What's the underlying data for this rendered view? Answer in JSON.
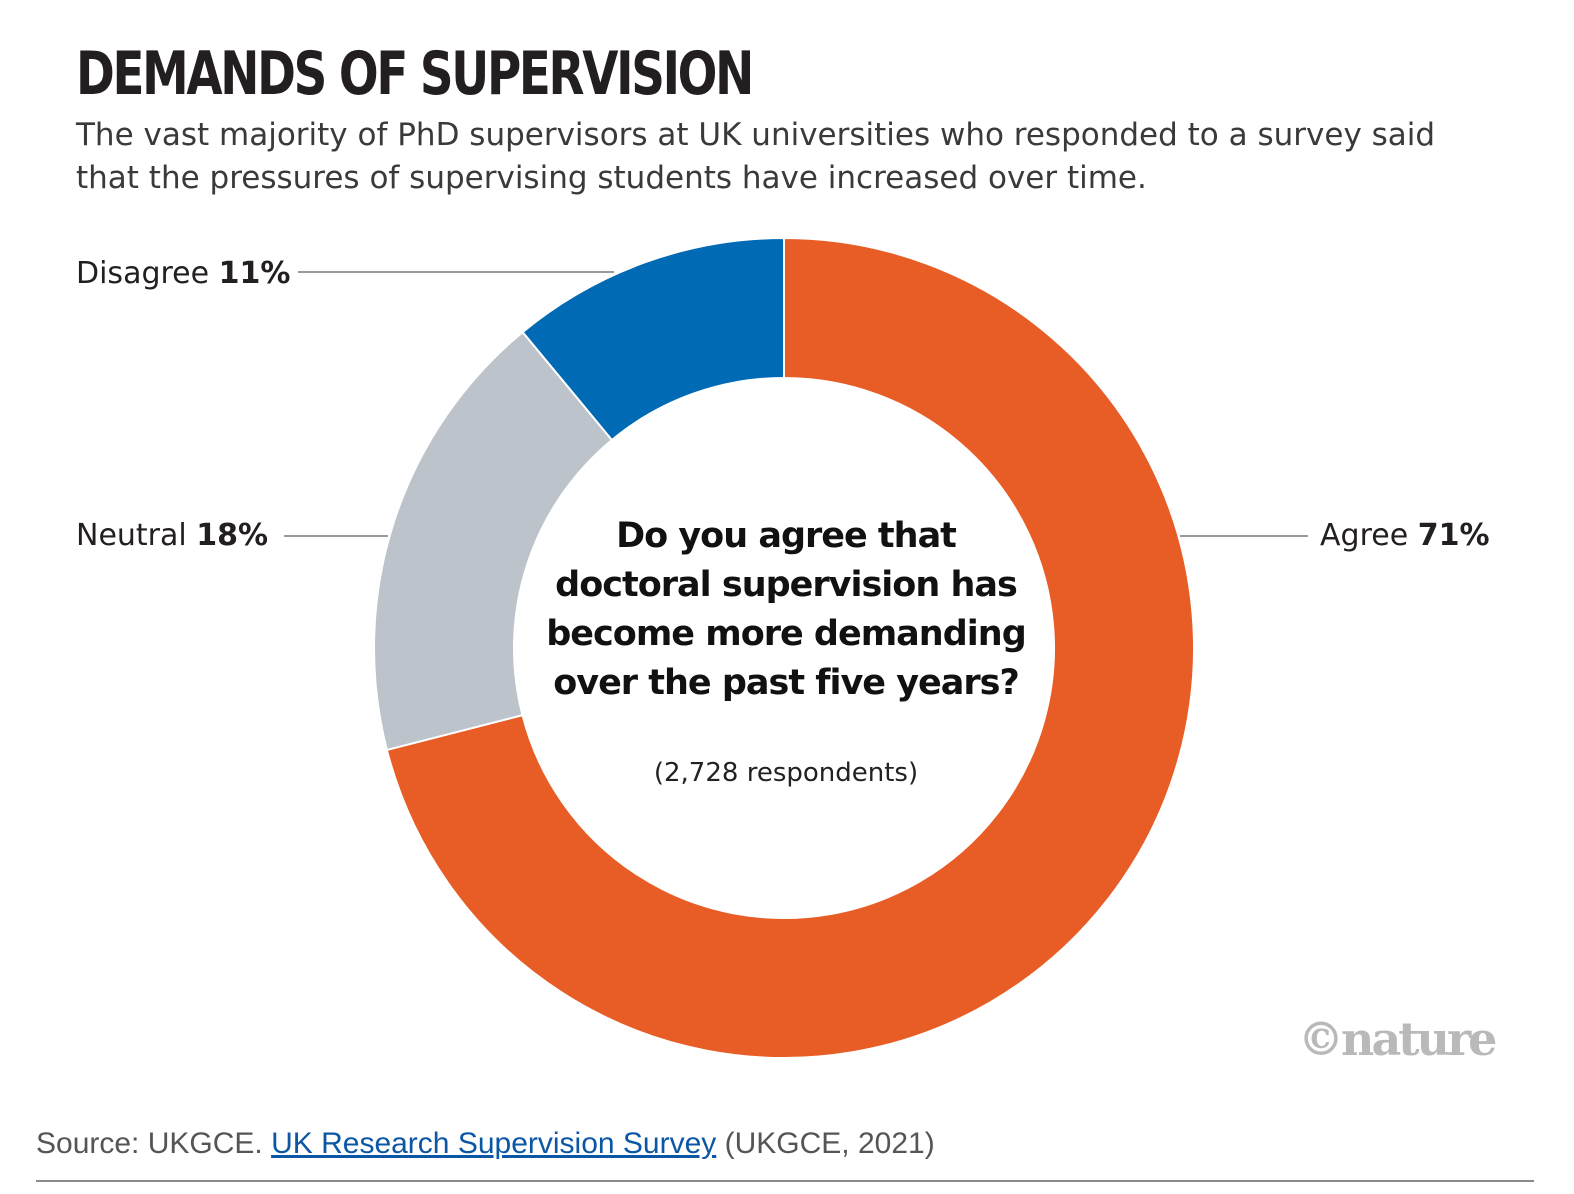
{
  "title": "DEMANDS OF SUPERVISION",
  "subtitle": "The vast majority of PhD supervisors at UK universities who responded to a survey said that the pressures of supervising students have increased over time.",
  "chart_data": {
    "type": "pie",
    "donut": true,
    "title": "DEMANDS OF SUPERVISION",
    "center_text": "Do you agree that doctoral supervision has become more demanding over the past five years?",
    "center_subtext": "(2,728 respondents)",
    "categories": [
      "Agree",
      "Neutral",
      "Disagree"
    ],
    "values": [
      71,
      18,
      11
    ],
    "value_labels": [
      "71%",
      "18%",
      "11%"
    ],
    "colors": [
      "#e85c25",
      "#bcc3cb",
      "#006ab4"
    ]
  },
  "labels": {
    "agree": {
      "name": "Agree",
      "value": "71%"
    },
    "neutral": {
      "name": "Neutral",
      "value": "18%"
    },
    "disagree": {
      "name": "Disagree",
      "value": "11%"
    }
  },
  "credit": "©nature",
  "source": {
    "prefix": "Source: UKGCE. ",
    "link_text": "UK Research Supervision Survey",
    "suffix": " (UKGCE, 2021)"
  }
}
